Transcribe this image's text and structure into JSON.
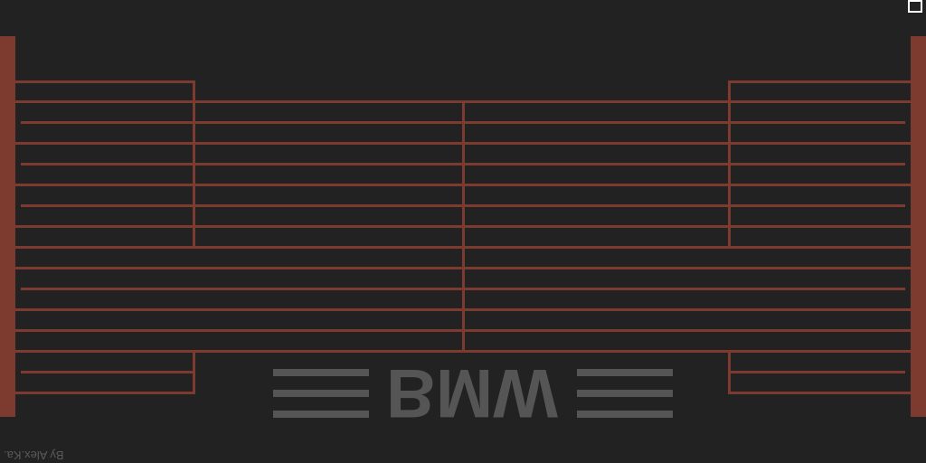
{
  "colors": {
    "background": "#222222",
    "frame": "#7d3b2f",
    "logo": "#555555",
    "credit": "#5a5a5a"
  },
  "window": {
    "maximize_icon": "square-outline-icon"
  },
  "logo": {
    "text": "BMW"
  },
  "credit": {
    "text": "By Alex.Ka."
  }
}
